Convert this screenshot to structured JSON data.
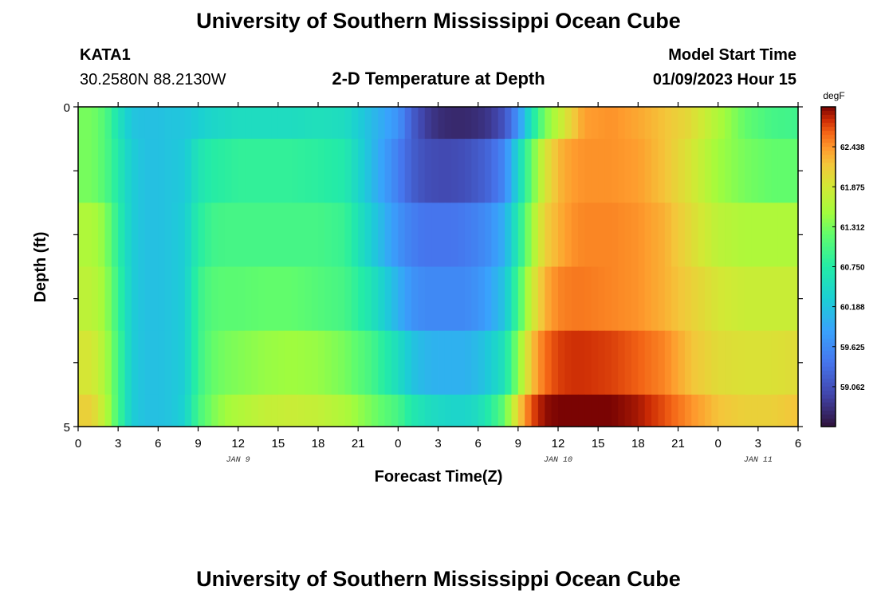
{
  "title": "University of Southern Mississippi Ocean Cube",
  "footer_title": "University of Southern Mississippi Ocean Cube",
  "station": {
    "id": "KATA1",
    "coords": "30.2580N  88.2130W"
  },
  "plot_title": "2-D Temperature at Depth",
  "model_start": {
    "label": "Model Start Time",
    "value": "01/09/2023 Hour 15"
  },
  "chart_data": {
    "type": "heatmap",
    "xlabel": "Forecast Time(Z)",
    "ylabel": "Depth (ft)",
    "x_tick_labels": [
      "0",
      "3",
      "6",
      "9",
      "12",
      "15",
      "18",
      "21",
      "0",
      "3",
      "6",
      "9",
      "12",
      "15",
      "18",
      "21",
      "0",
      "3",
      "6"
    ],
    "x_range": [
      0,
      54
    ],
    "date_labels": [
      {
        "text": "JAN 9",
        "x": 12
      },
      {
        "text": "JAN 10",
        "x": 36
      },
      {
        "text": "JAN 11",
        "x": 51
      }
    ],
    "y_tick_labels": [
      "0",
      "5"
    ],
    "y_range": [
      0,
      5
    ],
    "depth_rows": [
      "0-0.5",
      "0.5-1.5",
      "1.5-2.5",
      "2.5-3.5",
      "3.5-4.5",
      "4.5-5"
    ],
    "time_keys": [
      0,
      1,
      2,
      3,
      4,
      5,
      6,
      7,
      8,
      9,
      10,
      11,
      12,
      14,
      16,
      18,
      20,
      22,
      24,
      25,
      26,
      27,
      28,
      29,
      30,
      31,
      32,
      33,
      34,
      35,
      36,
      37,
      38,
      40,
      42,
      44,
      46,
      48,
      50,
      52,
      54
    ],
    "values": [
      [
        61.3,
        61.3,
        61.1,
        60.6,
        60.2,
        60.15,
        60.15,
        60.2,
        60.2,
        60.3,
        60.4,
        60.45,
        60.5,
        60.5,
        60.5,
        60.55,
        60.5,
        60.1,
        59.7,
        59.2,
        58.9,
        58.75,
        58.7,
        58.7,
        58.75,
        58.85,
        59.1,
        59.7,
        60.6,
        61.3,
        61.7,
        62.1,
        62.4,
        62.45,
        62.35,
        62.2,
        62.0,
        61.6,
        61.2,
        61.0,
        60.95
      ],
      [
        61.3,
        61.3,
        61.1,
        60.7,
        60.3,
        60.15,
        60.15,
        60.2,
        60.25,
        60.6,
        60.75,
        60.8,
        60.85,
        60.85,
        60.85,
        60.8,
        60.7,
        60.1,
        59.5,
        59.2,
        59.05,
        59.0,
        59.0,
        59.05,
        59.15,
        59.3,
        59.6,
        60.4,
        61.2,
        61.9,
        62.25,
        62.4,
        62.45,
        62.45,
        62.4,
        62.2,
        61.9,
        61.5,
        61.3,
        61.2,
        61.2
      ],
      [
        61.6,
        61.6,
        61.4,
        60.8,
        60.3,
        60.15,
        60.15,
        60.2,
        60.3,
        60.75,
        60.95,
        61.0,
        61.0,
        61.0,
        61.0,
        61.0,
        60.9,
        60.3,
        59.7,
        59.5,
        59.4,
        59.4,
        59.4,
        59.45,
        59.55,
        59.7,
        60.0,
        60.7,
        61.5,
        62.1,
        62.3,
        62.45,
        62.5,
        62.5,
        62.45,
        62.3,
        62.0,
        61.7,
        61.6,
        61.6,
        61.6
      ],
      [
        61.7,
        61.7,
        61.5,
        60.9,
        60.3,
        60.15,
        60.15,
        60.2,
        60.3,
        60.9,
        61.1,
        61.15,
        61.15,
        61.2,
        61.2,
        61.1,
        61.0,
        60.6,
        60.0,
        59.7,
        59.6,
        59.6,
        59.6,
        59.6,
        59.7,
        59.9,
        60.2,
        61.0,
        61.8,
        62.3,
        62.5,
        62.55,
        62.55,
        62.5,
        62.45,
        62.3,
        62.1,
        61.9,
        61.8,
        61.8,
        61.8
      ],
      [
        61.9,
        61.9,
        61.6,
        61.0,
        60.3,
        60.15,
        60.15,
        60.2,
        60.3,
        60.9,
        61.2,
        61.3,
        61.35,
        61.45,
        61.5,
        61.45,
        61.3,
        61.0,
        60.5,
        60.2,
        60.05,
        60.0,
        60.0,
        60.0,
        60.1,
        60.3,
        60.6,
        61.4,
        62.2,
        62.6,
        62.75,
        62.8,
        62.8,
        62.75,
        62.65,
        62.5,
        62.2,
        62.0,
        61.95,
        61.95,
        62.0
      ],
      [
        62.1,
        62.1,
        61.7,
        61.0,
        60.3,
        60.15,
        60.15,
        60.2,
        60.35,
        61.0,
        61.3,
        61.5,
        61.6,
        61.75,
        61.8,
        61.75,
        61.6,
        61.3,
        61.0,
        60.7,
        60.55,
        60.45,
        60.4,
        60.4,
        60.5,
        60.8,
        61.2,
        62.1,
        62.7,
        62.95,
        63.0,
        63.05,
        63.05,
        63.0,
        62.9,
        62.7,
        62.45,
        62.2,
        62.1,
        62.1,
        62.2
      ]
    ],
    "vmin": 58.5,
    "vmax": 63.0,
    "colorbar": {
      "unit": "degF",
      "ticks": [
        "62.438",
        "61.875",
        "61.312",
        "60.750",
        "60.188",
        "59.625",
        "59.062"
      ],
      "tick_values": [
        62.438,
        61.875,
        61.312,
        60.75,
        60.188,
        59.625,
        59.062
      ]
    }
  }
}
